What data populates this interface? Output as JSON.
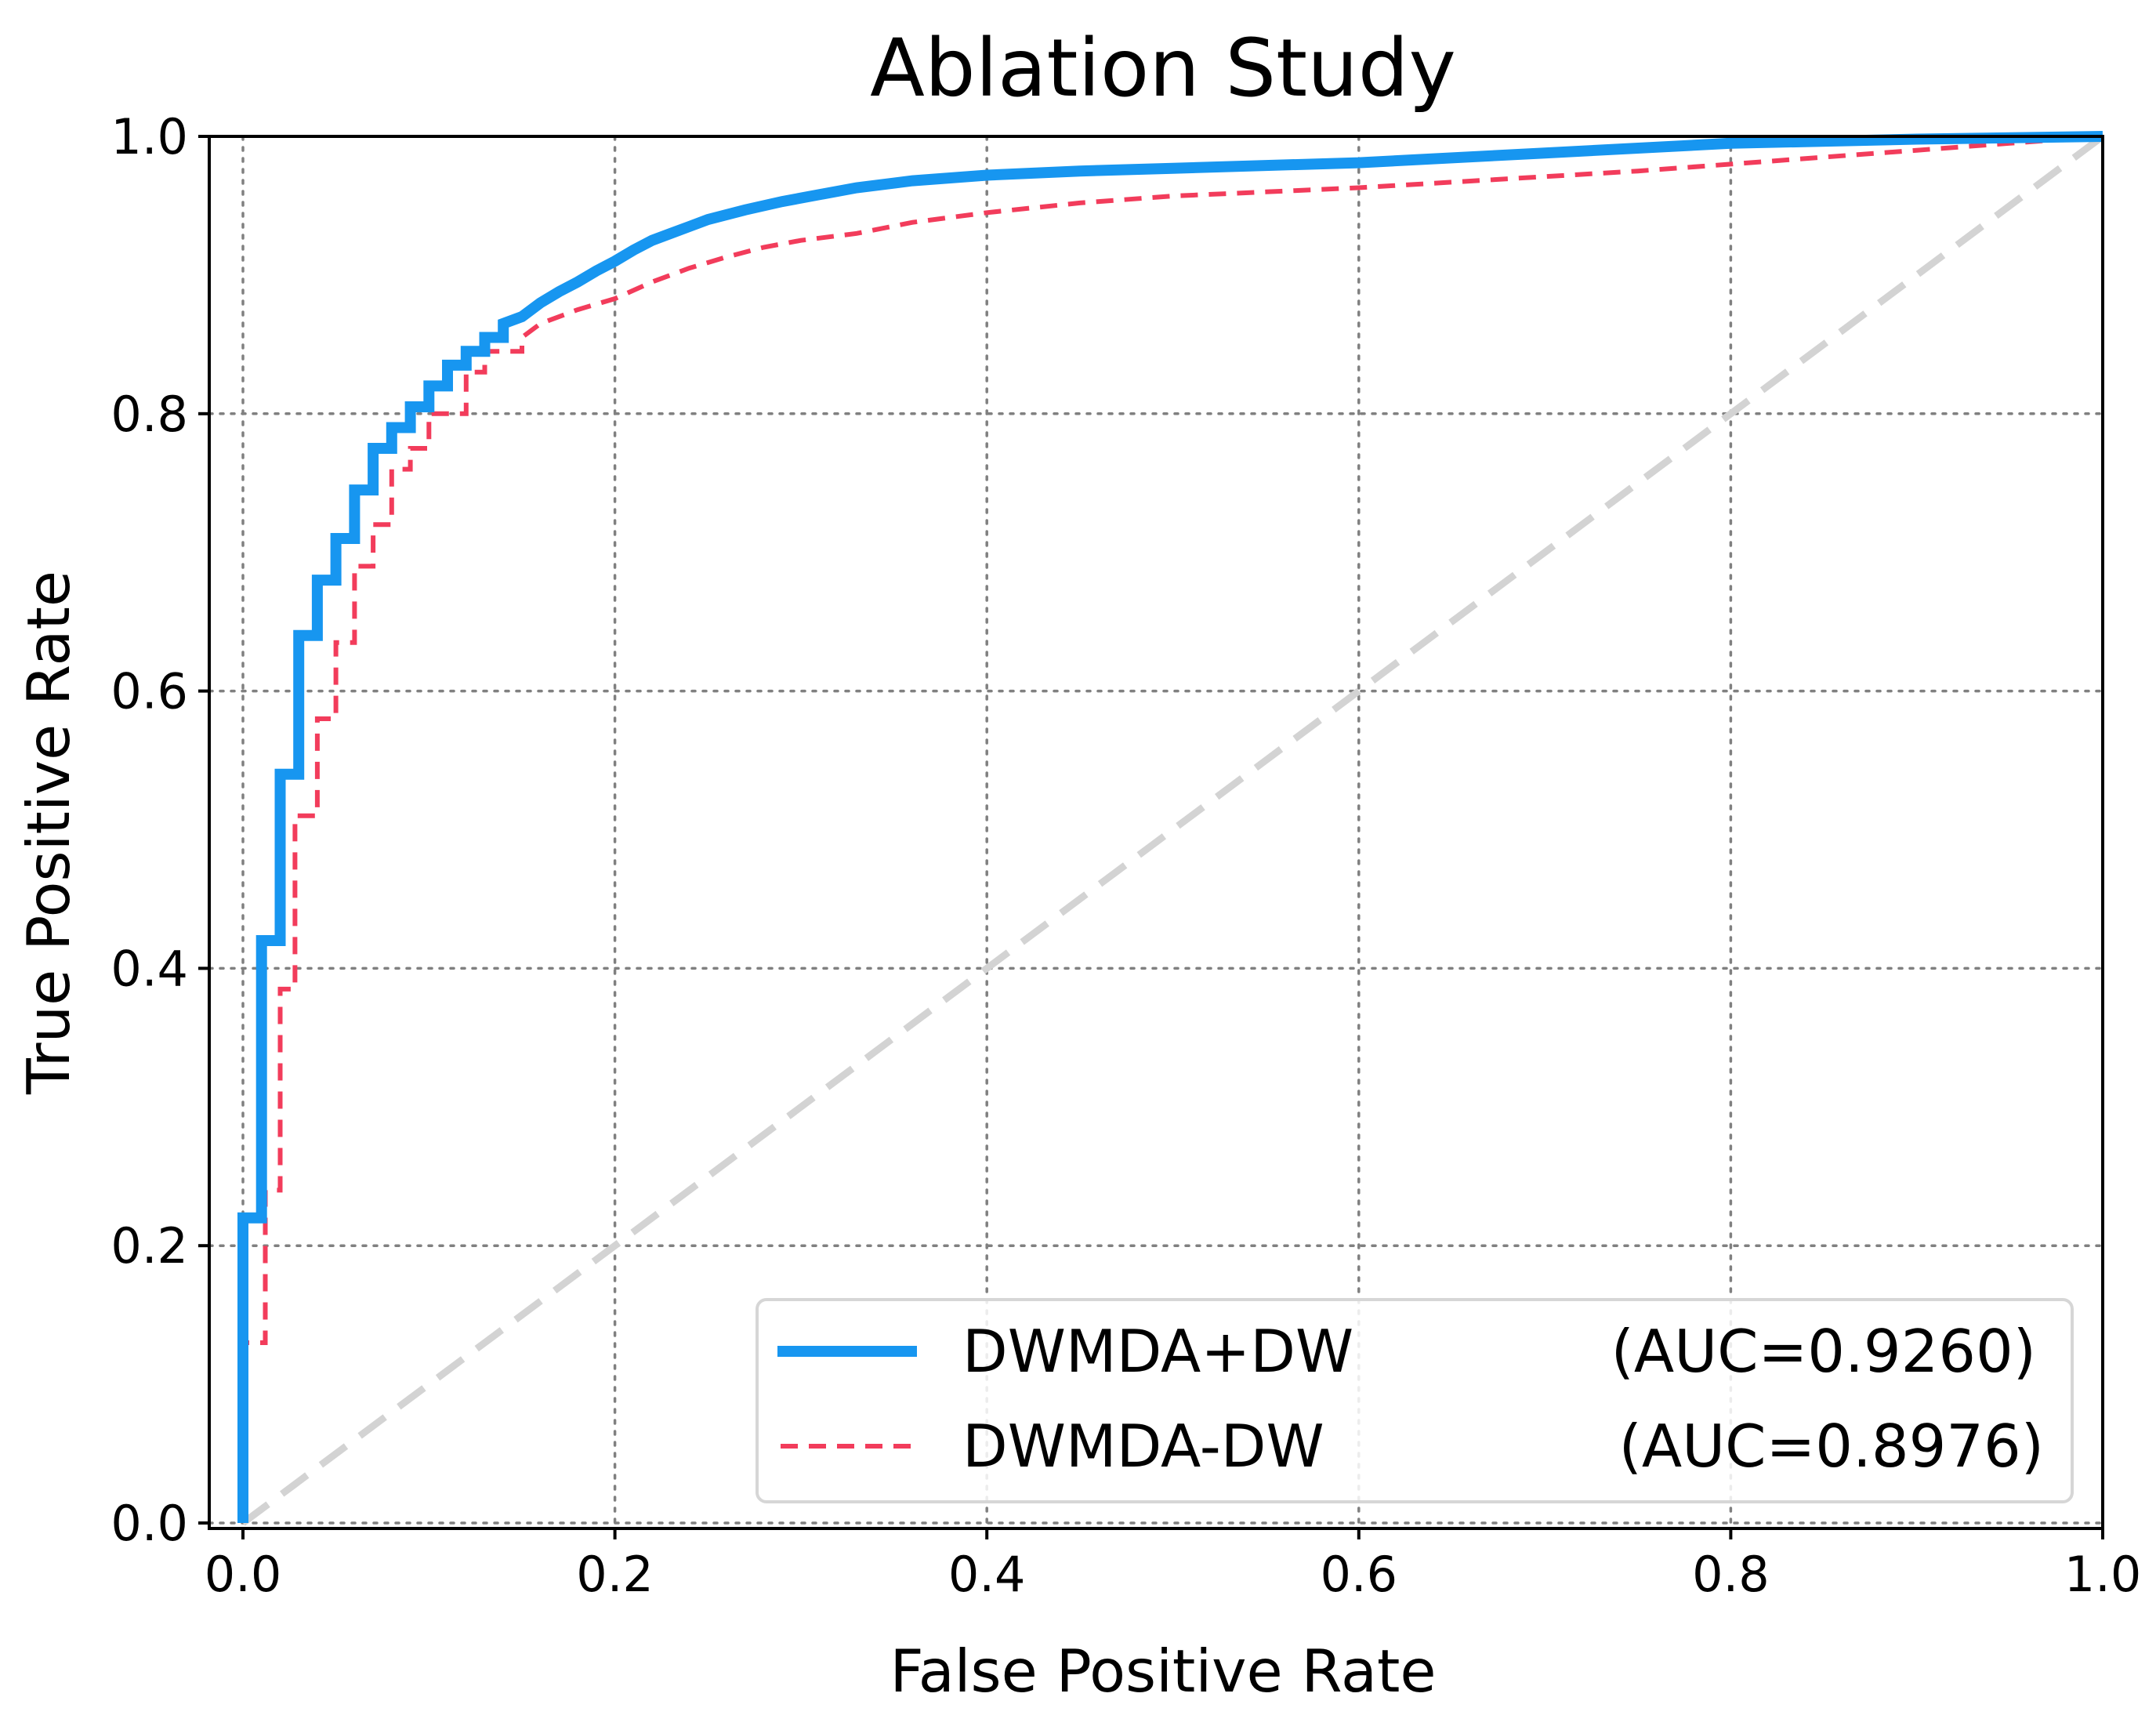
{
  "chart_data": {
    "type": "line",
    "title": "Ablation Study",
    "xlabel": "False Positive Rate",
    "ylabel": "True Positive Rate",
    "xlim": [
      0,
      1
    ],
    "ylim": [
      0,
      1
    ],
    "xticks": [
      "0.0",
      "0.2",
      "0.4",
      "0.6",
      "0.8",
      "1.0"
    ],
    "yticks": [
      "0.0",
      "0.2",
      "0.4",
      "0.6",
      "0.8",
      "1.0"
    ],
    "grid": true,
    "legend_position": "lower-right",
    "series": [
      {
        "name": "DWMDA+DW",
        "auc_label": "(AUC=0.9260)",
        "color": "#1796f0",
        "style": "solid",
        "x": [
          0,
          0,
          0.01,
          0.01,
          0.02,
          0.02,
          0.03,
          0.03,
          0.04,
          0.04,
          0.05,
          0.05,
          0.06,
          0.06,
          0.07,
          0.07,
          0.08,
          0.08,
          0.09,
          0.09,
          0.1,
          0.1,
          0.11,
          0.11,
          0.12,
          0.12,
          0.13,
          0.13,
          0.14,
          0.14,
          0.15,
          0.16,
          0.17,
          0.18,
          0.19,
          0.2,
          0.21,
          0.22,
          0.23,
          0.24,
          0.25,
          0.27,
          0.29,
          0.31,
          0.33,
          0.36,
          0.4,
          0.45,
          0.5,
          0.6,
          0.7,
          0.8,
          0.9,
          1.0
        ],
        "y": [
          0,
          0.22,
          0.22,
          0.42,
          0.42,
          0.54,
          0.54,
          0.64,
          0.64,
          0.68,
          0.68,
          0.71,
          0.71,
          0.745,
          0.745,
          0.775,
          0.775,
          0.79,
          0.79,
          0.805,
          0.805,
          0.82,
          0.82,
          0.835,
          0.835,
          0.845,
          0.845,
          0.855,
          0.855,
          0.865,
          0.87,
          0.88,
          0.888,
          0.895,
          0.903,
          0.91,
          0.918,
          0.925,
          0.93,
          0.935,
          0.94,
          0.947,
          0.953,
          0.958,
          0.963,
          0.968,
          0.972,
          0.975,
          0.977,
          0.981,
          0.988,
          0.995,
          0.998,
          1.0
        ]
      },
      {
        "name": "DWMDA-DW",
        "auc_label": "(AUC=0.8976)",
        "color": "#f23c5b",
        "style": "dashed",
        "x": [
          0,
          0,
          0.012,
          0.012,
          0.02,
          0.02,
          0.028,
          0.028,
          0.04,
          0.04,
          0.05,
          0.05,
          0.06,
          0.06,
          0.07,
          0.07,
          0.08,
          0.08,
          0.09,
          0.09,
          0.1,
          0.1,
          0.12,
          0.12,
          0.13,
          0.13,
          0.15,
          0.15,
          0.16,
          0.18,
          0.2,
          0.22,
          0.24,
          0.26,
          0.28,
          0.3,
          0.33,
          0.36,
          0.4,
          0.45,
          0.5,
          0.55,
          0.6,
          0.65,
          0.7,
          0.75,
          0.8,
          0.85,
          0.9,
          0.95,
          1.0
        ],
        "y": [
          0,
          0.13,
          0.13,
          0.24,
          0.24,
          0.385,
          0.385,
          0.51,
          0.51,
          0.58,
          0.58,
          0.635,
          0.635,
          0.69,
          0.69,
          0.72,
          0.72,
          0.76,
          0.76,
          0.775,
          0.775,
          0.8,
          0.8,
          0.83,
          0.83,
          0.845,
          0.845,
          0.855,
          0.865,
          0.875,
          0.883,
          0.895,
          0.905,
          0.913,
          0.92,
          0.925,
          0.93,
          0.938,
          0.945,
          0.952,
          0.957,
          0.96,
          0.963,
          0.967,
          0.971,
          0.975,
          0.98,
          0.985,
          0.99,
          0.995,
          1.0
        ]
      }
    ],
    "reference_line": {
      "color": "#d3d3d3",
      "style": "dashed",
      "x": [
        0,
        1
      ],
      "y": [
        0,
        1
      ]
    }
  }
}
